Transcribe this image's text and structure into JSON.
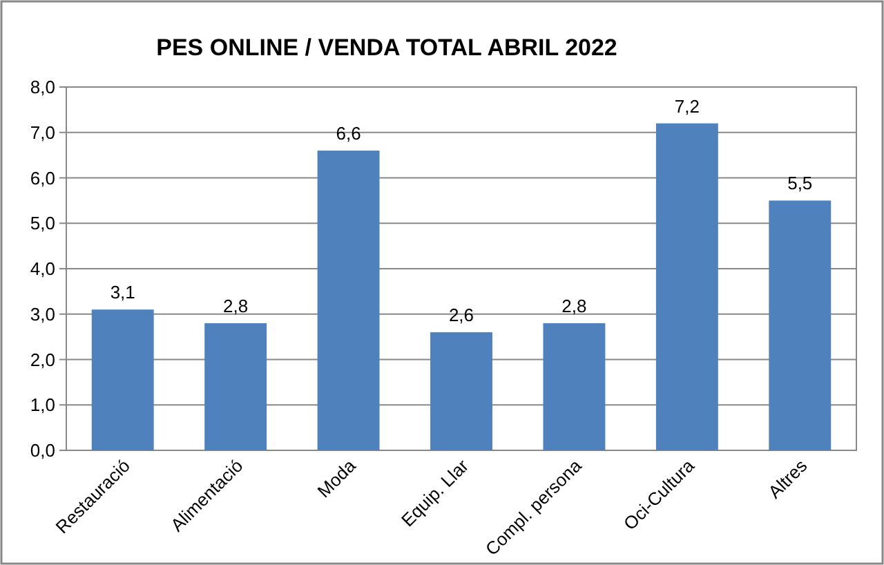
{
  "chart_data": {
    "type": "bar",
    "title": "PES ONLINE / VENDA TOTAL ABRIL 2022",
    "categories": [
      "Restauració",
      "Alimentació",
      "Moda",
      "Equip. Llar",
      "Compl. persona",
      "Oci-Cultura",
      "Altres"
    ],
    "values": [
      3.1,
      2.8,
      6.6,
      2.6,
      2.8,
      7.2,
      5.5
    ],
    "value_labels": [
      "3,1",
      "2,8",
      "6,6",
      "2,6",
      "2,8",
      "7,2",
      "5,5"
    ],
    "color": "#4f81bd",
    "ylim": [
      0,
      8
    ],
    "yticks": [
      {
        "value": 0,
        "label": "0,0"
      },
      {
        "value": 1,
        "label": "1,0"
      },
      {
        "value": 2,
        "label": "2,0"
      },
      {
        "value": 3,
        "label": "3,0"
      },
      {
        "value": 4,
        "label": "4,0"
      },
      {
        "value": 5,
        "label": "5,0"
      },
      {
        "value": 6,
        "label": "6,0"
      },
      {
        "value": 7,
        "label": "7,0"
      },
      {
        "value": 8,
        "label": "8,0"
      }
    ],
    "grid": "y"
  }
}
